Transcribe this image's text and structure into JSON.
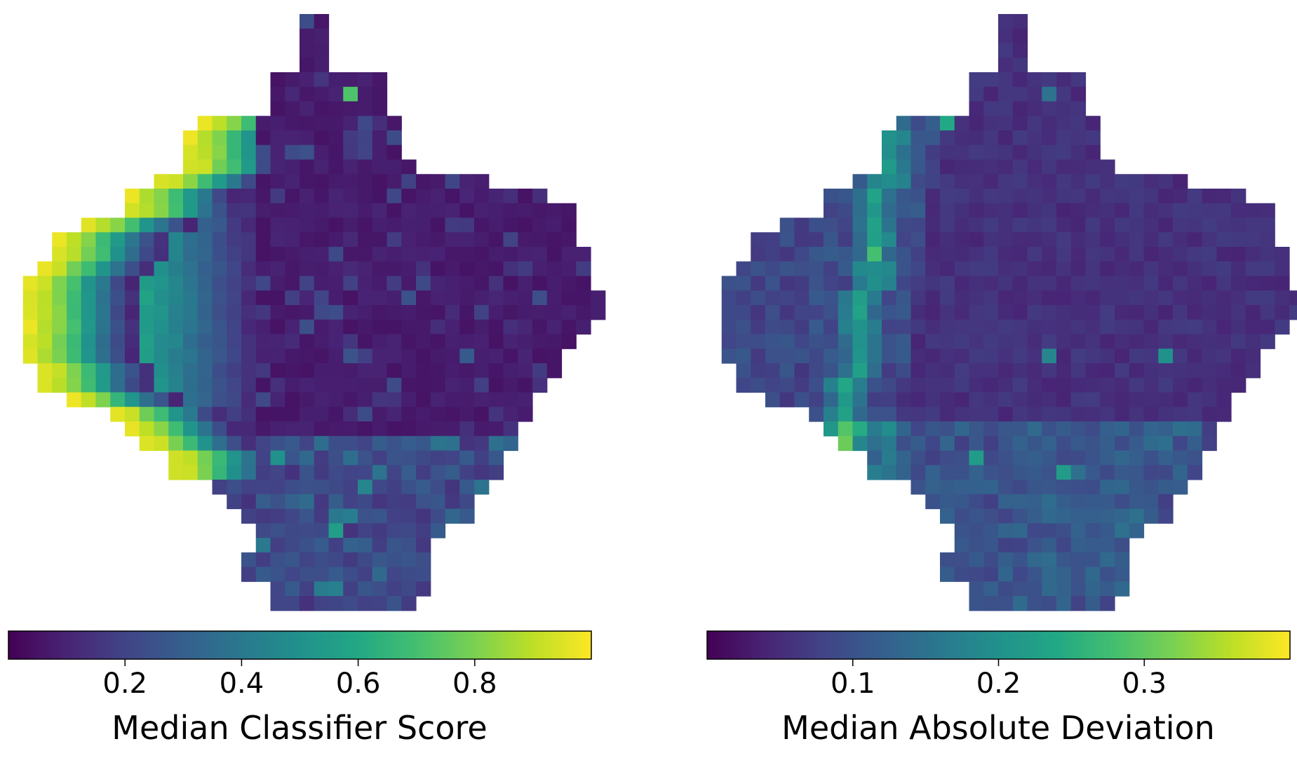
{
  "chart_data": [
    {
      "type": "heatmap",
      "title": "",
      "colormap": "viridis",
      "colorbar": {
        "label": "Median Classifier Score",
        "range": [
          0.0,
          1.0
        ],
        "ticks": [
          0.2,
          0.4,
          0.6,
          0.8
        ],
        "tick_labels": [
          "0.2",
          "0.4",
          "0.6",
          "0.8"
        ],
        "orientation": "horizontal",
        "placement": "bottom"
      },
      "grid": {
        "rows": 41,
        "cols": 41,
        "row_ranges": [
          [
            20,
            22
          ],
          [
            20,
            22
          ],
          [
            20,
            22
          ],
          [
            20,
            22
          ],
          [
            18,
            26
          ],
          [
            18,
            26
          ],
          [
            18,
            26
          ],
          [
            13,
            27
          ],
          [
            12,
            27
          ],
          [
            12,
            27
          ],
          [
            12,
            28
          ],
          [
            10,
            33
          ],
          [
            8,
            37
          ],
          [
            8,
            39
          ],
          [
            5,
            39
          ],
          [
            3,
            39
          ],
          [
            3,
            40
          ],
          [
            2,
            40
          ],
          [
            1,
            40
          ],
          [
            1,
            41
          ],
          [
            1,
            41
          ],
          [
            1,
            40
          ],
          [
            1,
            39
          ],
          [
            1,
            38
          ],
          [
            2,
            38
          ],
          [
            2,
            37
          ],
          [
            4,
            36
          ],
          [
            7,
            36
          ],
          [
            8,
            35
          ],
          [
            9,
            35
          ],
          [
            11,
            34
          ],
          [
            11,
            34
          ],
          [
            14,
            33
          ],
          [
            15,
            32
          ],
          [
            16,
            32
          ],
          [
            17,
            30
          ],
          [
            17,
            29
          ],
          [
            16,
            29
          ],
          [
            16,
            29
          ],
          [
            18,
            29
          ],
          [
            18,
            28
          ]
        ],
        "holes": [
          [
            1,
            2
          ],
          [
            3,
            2
          ],
          [
            1,
            8
          ],
          [
            4,
            6
          ],
          [
            2,
            4
          ],
          [
            3,
            16
          ],
          [
            6,
            16
          ],
          [
            3,
            30
          ],
          [
            4,
            27
          ],
          [
            3,
            34
          ],
          [
            3,
            8
          ],
          [
            3,
            5
          ]
        ],
        "gradient_left_high": [
          0.95,
          0.9,
          0.8,
          0.68,
          0.52,
          0.38,
          0.24,
          0.12
        ],
        "background_median": 0.05,
        "scattered_cells": [
          {
            "row": 5,
            "col": 23,
            "value": 0.72
          },
          {
            "row": 30,
            "col": 18,
            "value": 0.5
          },
          {
            "row": 35,
            "col": 22,
            "value": 0.55
          },
          {
            "row": 32,
            "col": 24,
            "value": 0.45
          },
          {
            "row": 23,
            "col": 31,
            "value": 0.28
          },
          {
            "row": 23,
            "col": 23,
            "value": 0.25
          }
        ]
      }
    },
    {
      "type": "heatmap",
      "title": "",
      "colormap": "viridis",
      "colorbar": {
        "label": "Median Absolute Deviation",
        "range": [
          0.0,
          0.4
        ],
        "ticks": [
          0.1,
          0.2,
          0.3
        ],
        "tick_labels": [
          "0.1",
          "0.2",
          "0.3"
        ],
        "orientation": "horizontal",
        "placement": "bottom"
      },
      "grid": {
        "rows": 41,
        "cols": 41,
        "ridge_peak_value": 0.25,
        "ridge_secondary_value": 0.13,
        "background_median": 0.04,
        "scattered_cells": [
          {
            "row": 5,
            "col": 23,
            "value": 0.15
          },
          {
            "row": 7,
            "col": 16,
            "value": 0.24
          },
          {
            "row": 16,
            "col": 11,
            "value": 0.28
          },
          {
            "row": 30,
            "col": 18,
            "value": 0.22
          },
          {
            "row": 31,
            "col": 24,
            "value": 0.22
          },
          {
            "row": 23,
            "col": 31,
            "value": 0.2
          },
          {
            "row": 23,
            "col": 23,
            "value": 0.18
          }
        ]
      }
    }
  ]
}
